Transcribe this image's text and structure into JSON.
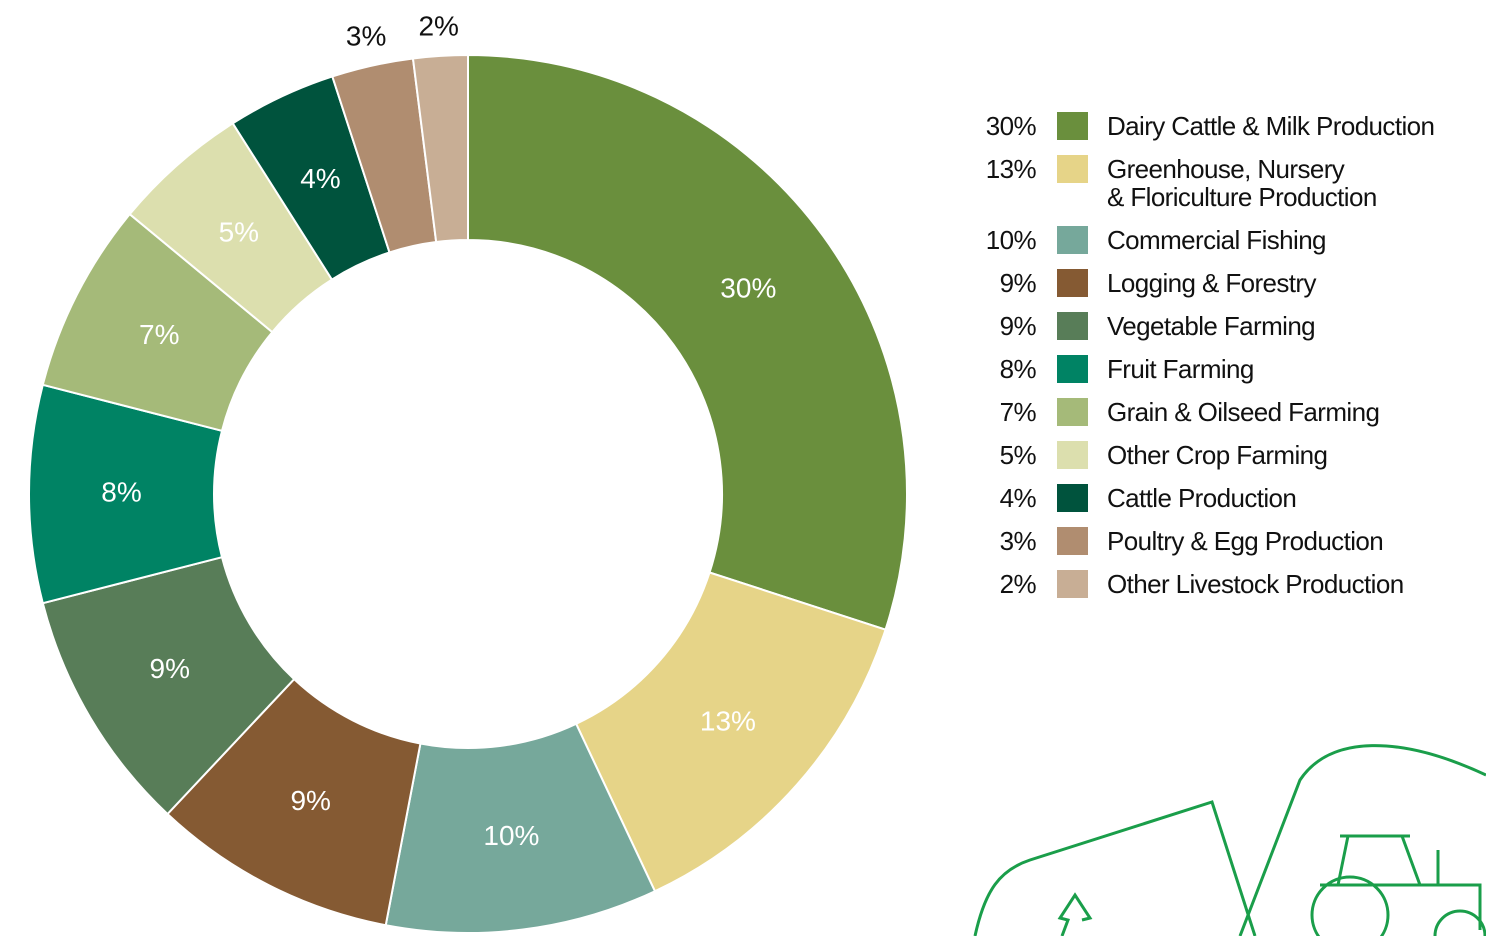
{
  "chart_data": {
    "type": "donut",
    "categories": [
      "Dairy Cattle & Milk Production",
      "Greenhouse, Nursery\n& Floriculture Production",
      "Commercial Fishing",
      "Logging & Forestry",
      "Vegetable Farming",
      "Fruit Farming",
      "Grain & Oilseed Farming",
      "Other Crop Farming",
      "Cattle Production",
      "Poultry & Egg Production",
      "Other Livestock Production"
    ],
    "values": [
      30,
      13,
      10,
      9,
      9,
      8,
      7,
      5,
      4,
      3,
      2
    ],
    "value_labels": [
      "30%",
      "13%",
      "10%",
      "9%",
      "9%",
      "8%",
      "7%",
      "5%",
      "4%",
      "3%",
      "2%"
    ],
    "colors": [
      "#6a8f3d",
      "#e6d488",
      "#76a89b",
      "#855a33",
      "#587d58",
      "#008364",
      "#a5ba79",
      "#dcdfae",
      "#00533d",
      "#b08d70",
      "#c8ae95"
    ],
    "legend": "right"
  }
}
